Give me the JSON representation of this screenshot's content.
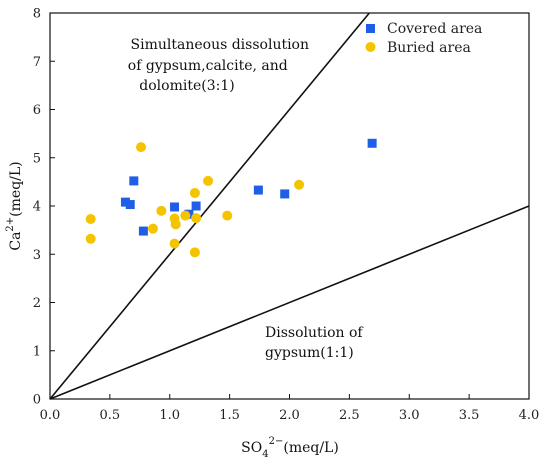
{
  "chart_data": {
    "type": "scatter",
    "xlabel_base": "SO",
    "xlabel_sub": "4",
    "xlabel_sup": "2−",
    "xlabel_unit": "(meq/L)",
    "ylabel_base": "Ca",
    "ylabel_sup": "2+",
    "ylabel_unit": "(meq/L)",
    "xlim": [
      0.0,
      4.0
    ],
    "ylim": [
      0,
      8
    ],
    "x_ticks": [
      0.0,
      0.5,
      1.0,
      1.5,
      2.0,
      2.5,
      3.0,
      3.5,
      4.0
    ],
    "x_tick_labels": [
      "0.0",
      "0.5",
      "1.0",
      "1.5",
      "2.0",
      "2.5",
      "3.0",
      "3.5",
      "4.0"
    ],
    "y_ticks": [
      0,
      1,
      2,
      3,
      4,
      5,
      6,
      7,
      8
    ],
    "y_tick_labels": [
      "0",
      "1",
      "2",
      "3",
      "4",
      "5",
      "6",
      "7",
      "8"
    ],
    "grid": false,
    "legend_position": "top-right",
    "series": [
      {
        "name": "Covered area",
        "marker": "square",
        "color": "#1f5fe8",
        "points": [
          {
            "x": 0.63,
            "y": 4.08
          },
          {
            "x": 0.67,
            "y": 4.03
          },
          {
            "x": 0.7,
            "y": 4.52
          },
          {
            "x": 0.78,
            "y": 3.48
          },
          {
            "x": 1.04,
            "y": 3.98
          },
          {
            "x": 1.16,
            "y": 3.83
          },
          {
            "x": 1.22,
            "y": 4.0
          },
          {
            "x": 1.74,
            "y": 4.33
          },
          {
            "x": 1.96,
            "y": 4.25
          },
          {
            "x": 2.69,
            "y": 5.3
          }
        ]
      },
      {
        "name": "Buried area",
        "marker": "circle",
        "color": "#f5c400",
        "points": [
          {
            "x": 0.34,
            "y": 3.73
          },
          {
            "x": 0.34,
            "y": 3.32
          },
          {
            "x": 0.76,
            "y": 5.22
          },
          {
            "x": 0.86,
            "y": 3.53
          },
          {
            "x": 0.93,
            "y": 3.9
          },
          {
            "x": 1.04,
            "y": 3.74
          },
          {
            "x": 1.05,
            "y": 3.62
          },
          {
            "x": 1.04,
            "y": 3.22
          },
          {
            "x": 1.13,
            "y": 3.8
          },
          {
            "x": 1.21,
            "y": 4.27
          },
          {
            "x": 1.22,
            "y": 3.75
          },
          {
            "x": 1.21,
            "y": 3.04
          },
          {
            "x": 1.32,
            "y": 4.52
          },
          {
            "x": 1.48,
            "y": 3.8
          },
          {
            "x": 2.08,
            "y": 4.44
          }
        ]
      }
    ],
    "reference_lines": [
      {
        "label": "3:1",
        "slope": 3
      },
      {
        "label": "1:1",
        "slope": 1
      }
    ],
    "annotations": [
      {
        "lines": [
          "Simultaneous dissolution",
          "of gypsum,calcite, and",
          "dolomite(3:1)"
        ]
      },
      {
        "lines": [
          "Dissolution of",
          "gypsum(1:1)"
        ]
      }
    ]
  }
}
